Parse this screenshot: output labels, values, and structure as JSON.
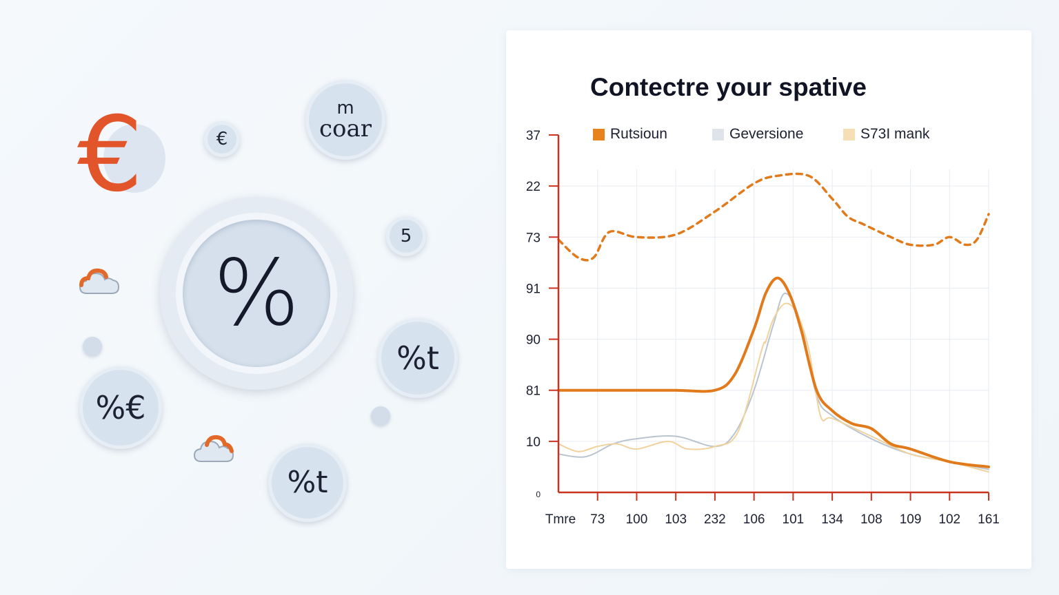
{
  "illustration": {
    "big_symbol": "%",
    "bubbles": [
      {
        "id": "euro-small",
        "text": "€"
      },
      {
        "id": "m-coar",
        "text_top": "m",
        "text_bottom": "coar"
      },
      {
        "id": "five",
        "text": "5"
      },
      {
        "id": "percent-t-right",
        "text": "%t"
      },
      {
        "id": "percent-euro",
        "text": "%€"
      },
      {
        "id": "percent-t-bottom",
        "text": "%t"
      }
    ],
    "euro_symbol": "€",
    "colors": {
      "accent": "#e2542a",
      "bubble": "#d7e2ef"
    }
  },
  "chart_data": {
    "type": "line",
    "title": "Contectre your spative",
    "xlabel": "",
    "ylabel": "",
    "x_tick_labels": [
      "Tmre",
      "73",
      "100",
      "103",
      "232",
      "106",
      "101",
      "134",
      "108",
      "109",
      "102",
      "161"
    ],
    "y_tick_labels": [
      "37",
      "22",
      "73",
      "91",
      "90",
      "81",
      "10",
      "0"
    ],
    "y_tick_values": [
      7,
      6,
      5,
      4,
      3,
      2,
      1,
      0
    ],
    "ylim": [
      0,
      7
    ],
    "xlim": [
      0,
      11
    ],
    "grid": true,
    "legend_position": "top",
    "series": [
      {
        "name": "Rutsioun",
        "color": "#e07a1a",
        "style": "solid",
        "points": [
          [
            0,
            2
          ],
          [
            1,
            2
          ],
          [
            2,
            2
          ],
          [
            3,
            2
          ],
          [
            4,
            2
          ],
          [
            4.5,
            2.3
          ],
          [
            5,
            3.2
          ],
          [
            5.3,
            3.9
          ],
          [
            5.6,
            4.2
          ],
          [
            5.9,
            3.9
          ],
          [
            6.2,
            3.2
          ],
          [
            6.6,
            2
          ],
          [
            7,
            1.6
          ],
          [
            7.5,
            1.35
          ],
          [
            8,
            1.25
          ],
          [
            8.5,
            0.95
          ],
          [
            9,
            0.85
          ],
          [
            10,
            0.6
          ],
          [
            11,
            0.5
          ]
        ]
      },
      {
        "name": "Geversione",
        "color": "#b9c4cf",
        "style": "solid",
        "points": [
          [
            0,
            0.75
          ],
          [
            0.7,
            0.7
          ],
          [
            1.4,
            0.95
          ],
          [
            2,
            1.05
          ],
          [
            3,
            1.1
          ],
          [
            4,
            0.9
          ],
          [
            4.5,
            1.15
          ],
          [
            5,
            2
          ],
          [
            5.5,
            3.3
          ],
          [
            5.8,
            3.9
          ],
          [
            6.2,
            3.3
          ],
          [
            6.6,
            1.9
          ],
          [
            7,
            1.5
          ],
          [
            8,
            1.05
          ],
          [
            9,
            0.75
          ],
          [
            10,
            0.6
          ],
          [
            11,
            0.45
          ]
        ]
      },
      {
        "name": "S73I mank",
        "color": "#f0d29c",
        "style": "solid",
        "points": [
          [
            0,
            0.95
          ],
          [
            0.5,
            0.8
          ],
          [
            1,
            0.9
          ],
          [
            1.5,
            0.95
          ],
          [
            2,
            0.85
          ],
          [
            2.8,
            1
          ],
          [
            3.3,
            0.85
          ],
          [
            4,
            0.9
          ],
          [
            4.6,
            1.2
          ],
          [
            5.2,
            2.8
          ],
          [
            5.3,
            2.95
          ],
          [
            5.5,
            3.4
          ],
          [
            5.8,
            3.7
          ],
          [
            6.1,
            3.5
          ],
          [
            6.4,
            2.8
          ],
          [
            6.7,
            1.5
          ],
          [
            7,
            1.45
          ],
          [
            8,
            1.1
          ],
          [
            9,
            0.75
          ],
          [
            10,
            0.6
          ],
          [
            11,
            0.4
          ]
        ]
      },
      {
        "name": "",
        "color": "#e07a1a",
        "style": "dashed",
        "points": [
          [
            0,
            4.95
          ],
          [
            0.5,
            4.6
          ],
          [
            0.9,
            4.6
          ],
          [
            1.3,
            5.1
          ],
          [
            2,
            5
          ],
          [
            3,
            5.05
          ],
          [
            4,
            5.5
          ],
          [
            5,
            6.05
          ],
          [
            5.6,
            6.2
          ],
          [
            6.4,
            6.2
          ],
          [
            7,
            5.75
          ],
          [
            7.4,
            5.4
          ],
          [
            7.8,
            5.25
          ],
          [
            8.5,
            5
          ],
          [
            9,
            4.85
          ],
          [
            9.6,
            4.85
          ],
          [
            10,
            5
          ],
          [
            10.4,
            4.85
          ],
          [
            10.7,
            4.95
          ],
          [
            11,
            5.45
          ]
        ]
      }
    ]
  }
}
